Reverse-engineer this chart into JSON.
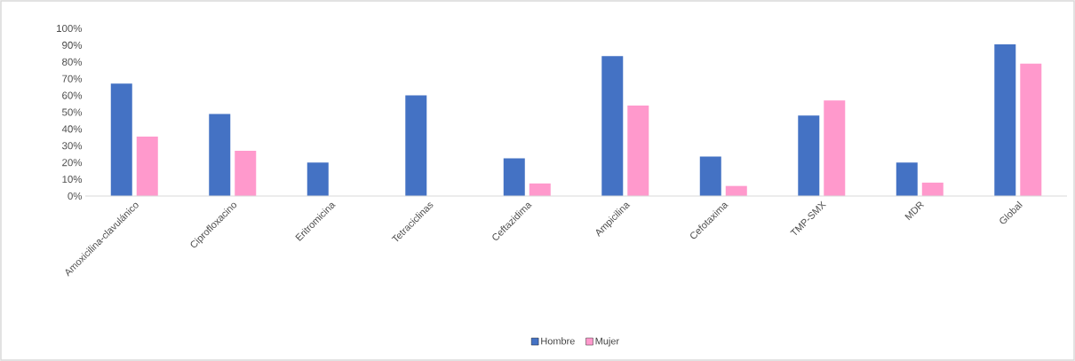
{
  "chart_data": {
    "type": "bar",
    "categories": [
      "Amoxicilina-clavulánico",
      "Ciprofloxacino",
      "Eritromicina",
      "Tetraciclinas",
      "Ceftazidima",
      "Ampicilina",
      "Cefotaxima",
      "TMP-SMX",
      "MDR",
      "Global"
    ],
    "series": [
      {
        "name": "Hombre",
        "color": "#4472c4",
        "values": [
          67,
          49,
          20,
          60,
          22.5,
          83.5,
          23.5,
          48,
          20,
          90.5
        ]
      },
      {
        "name": "Mujer",
        "color": "#ff99cc",
        "values": [
          35.5,
          27,
          0,
          0,
          7.5,
          54,
          6,
          57,
          8,
          79
        ]
      }
    ],
    "ylim": [
      0,
      100
    ],
    "yticks": [
      {
        "value": 0,
        "label": "0%"
      },
      {
        "value": 10,
        "label": "10%"
      },
      {
        "value": 20,
        "label": "20%"
      },
      {
        "value": 30,
        "label": "30%"
      },
      {
        "value": 40,
        "label": "40%"
      },
      {
        "value": 50,
        "label": "50%"
      },
      {
        "value": 60,
        "label": "60%"
      },
      {
        "value": 70,
        "label": "70%"
      },
      {
        "value": 80,
        "label": "80%"
      },
      {
        "value": 90,
        "label": "90%"
      },
      {
        "value": 100,
        "label": "100%"
      }
    ],
    "legend": "bottom"
  }
}
